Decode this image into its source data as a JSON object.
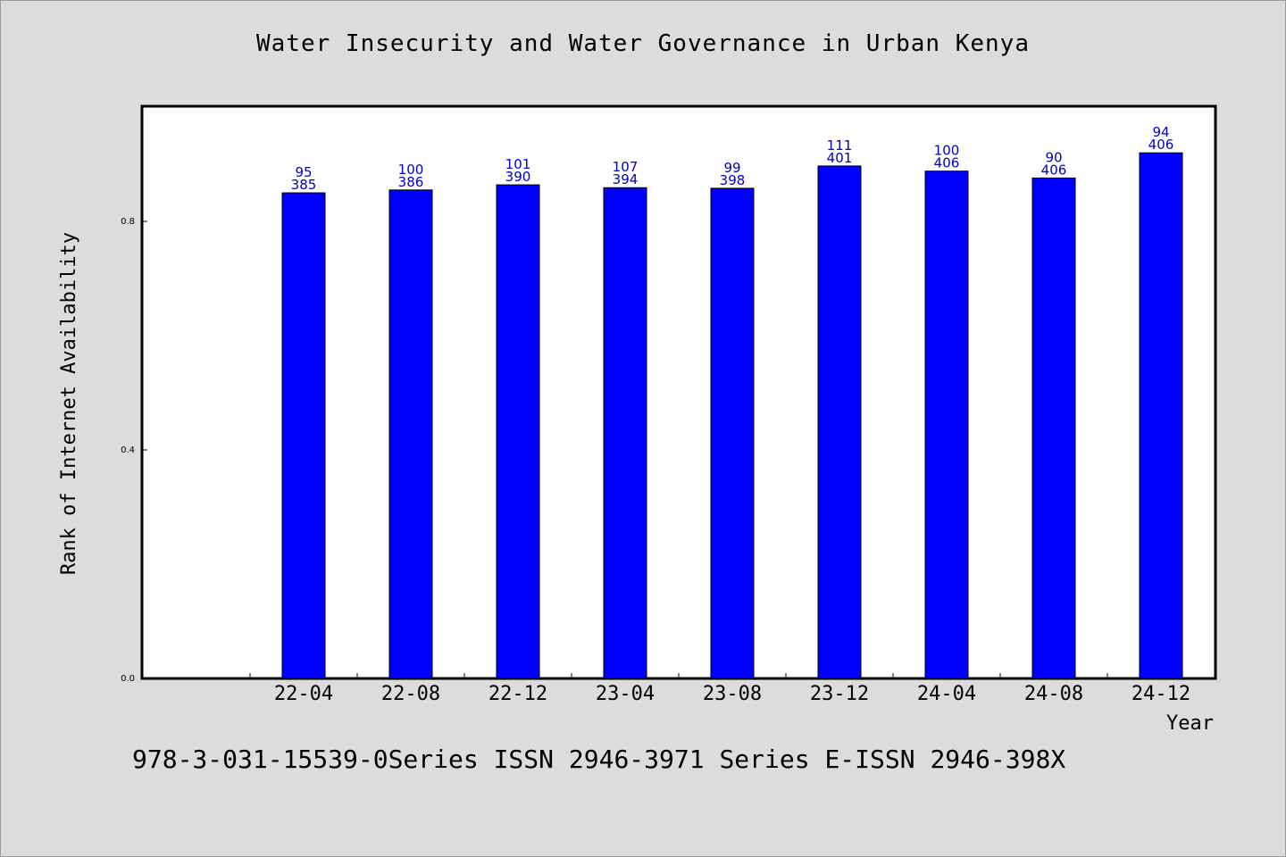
{
  "chart_data": {
    "type": "bar",
    "title": "Water Insecurity and Water Governance in Urban Kenya",
    "xlabel": "Year",
    "ylabel": "Rank of Internet Availability",
    "categories": [
      "22-04",
      "22-08",
      "22-12",
      "23-04",
      "23-08",
      "23-12",
      "24-04",
      "24-08",
      "24-12"
    ],
    "series": [
      {
        "values": [
          0.85,
          0.855,
          0.864,
          0.859,
          0.858,
          0.897,
          0.888,
          0.876,
          0.92
        ],
        "color": "#0000ff"
      }
    ],
    "bar_labels": [
      [
        "95",
        "385"
      ],
      [
        "100",
        "386"
      ],
      [
        "101",
        "390"
      ],
      [
        "107",
        "394"
      ],
      [
        "99",
        "398"
      ],
      [
        "111",
        "401"
      ],
      [
        "100",
        "406"
      ],
      [
        "90",
        "406"
      ],
      [
        "94",
        "406"
      ]
    ],
    "yticks": [
      0.0,
      0.4,
      0.8
    ],
    "ytick_labels": [
      "0.0",
      "0.4",
      "0.8"
    ],
    "ylim": [
      0.0,
      1.0
    ],
    "grid": false,
    "legend": "none"
  },
  "footer": "978-3-031-15539-0Series ISSN 2946-3971 Series E-ISSN 2946-398X",
  "colors": {
    "background": "#dcdcdc",
    "plot_background": "#ffffff",
    "bar": "#0000ff",
    "label": "#0000cc"
  }
}
